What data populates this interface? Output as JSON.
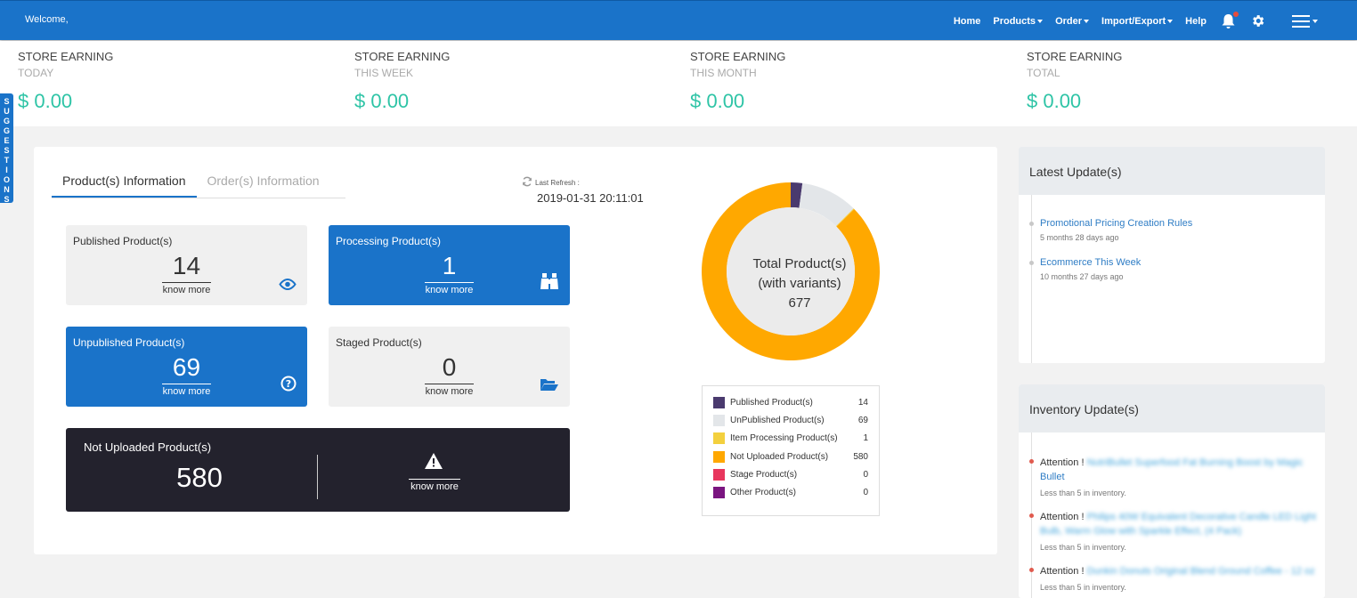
{
  "header": {
    "welcome": "Welcome,",
    "nav": {
      "home": "Home",
      "products": "Products",
      "order": "Order",
      "import_export": "Import/Export",
      "help": "Help"
    },
    "icons": [
      "bell-icon",
      "gear-icon",
      "hamburger-menu-icon"
    ]
  },
  "earnings": [
    {
      "title": "STORE EARNING",
      "period": "TODAY",
      "amount": "$ 0.00"
    },
    {
      "title": "STORE EARNING",
      "period": "THIS WEEK",
      "amount": "$ 0.00"
    },
    {
      "title": "STORE EARNING",
      "period": "THIS MONTH",
      "amount": "$ 0.00"
    },
    {
      "title": "STORE EARNING",
      "period": "TOTAL",
      "amount": "$ 0.00"
    }
  ],
  "suggestions_tab": "SUGGESTIONS",
  "tabs": {
    "products": "Product(s) Information",
    "orders": "Order(s) Information"
  },
  "refresh": {
    "label": "Last Refresh :",
    "value": "2019-01-31 20:11:01"
  },
  "tiles": {
    "published": {
      "title": "Published Product(s)",
      "count": "14",
      "link": "know more"
    },
    "processing": {
      "title": "Processing Product(s)",
      "count": "1",
      "link": "know more"
    },
    "unpublished": {
      "title": "Unpublished Product(s)",
      "count": "69",
      "link": "know more"
    },
    "staged": {
      "title": "Staged Product(s)",
      "count": "0",
      "link": "know more"
    },
    "not_uploaded": {
      "title": "Not Uploaded Product(s)",
      "count": "580",
      "link": "know more"
    }
  },
  "donut": {
    "line1": "Total Product(s)",
    "line2": "(with variants)",
    "total": "677"
  },
  "chart_data": {
    "type": "pie",
    "categories": [
      "Published Product(s)",
      "UnPublished Product(s)",
      "Item Processing Product(s)",
      "Not Uploaded Product(s)",
      "Stage Product(s)",
      "Other Product(s)"
    ],
    "values": [
      14,
      69,
      1,
      580,
      0,
      0
    ],
    "colors": [
      "#4a3a6e",
      "#e3e6e9",
      "#f3d03e",
      "#ffa800",
      "#e8365d",
      "#7a1580"
    ]
  },
  "latest_updates": {
    "title": "Latest Update(s)",
    "items": [
      {
        "link": "Promotional Pricing Creation Rules",
        "time": "5 months 28 days ago"
      },
      {
        "link": "Ecommerce This Week",
        "time": "10 months 27 days ago"
      }
    ]
  },
  "inventory_updates": {
    "title": "Inventory Update(s)",
    "items": [
      {
        "prefix": "Attention !",
        "product": "NutriBullet Superfood Fat Burning Boost by Magic",
        "product2": "Bullet",
        "note": "Less than 5 in inventory."
      },
      {
        "prefix": "Attention !",
        "product": "Philips 40W Equivalent Decorative Candle LED Light",
        "product2": "Bulb, Warm Glow with Sparkle Effect, (4 Pack)",
        "note": "Less than 5 in inventory."
      },
      {
        "prefix": "Attention !",
        "product": "Dunkin Donuts Original Blend Ground Coffee - 12 oz",
        "product2": "",
        "note": "Less than 5 in inventory."
      }
    ]
  }
}
